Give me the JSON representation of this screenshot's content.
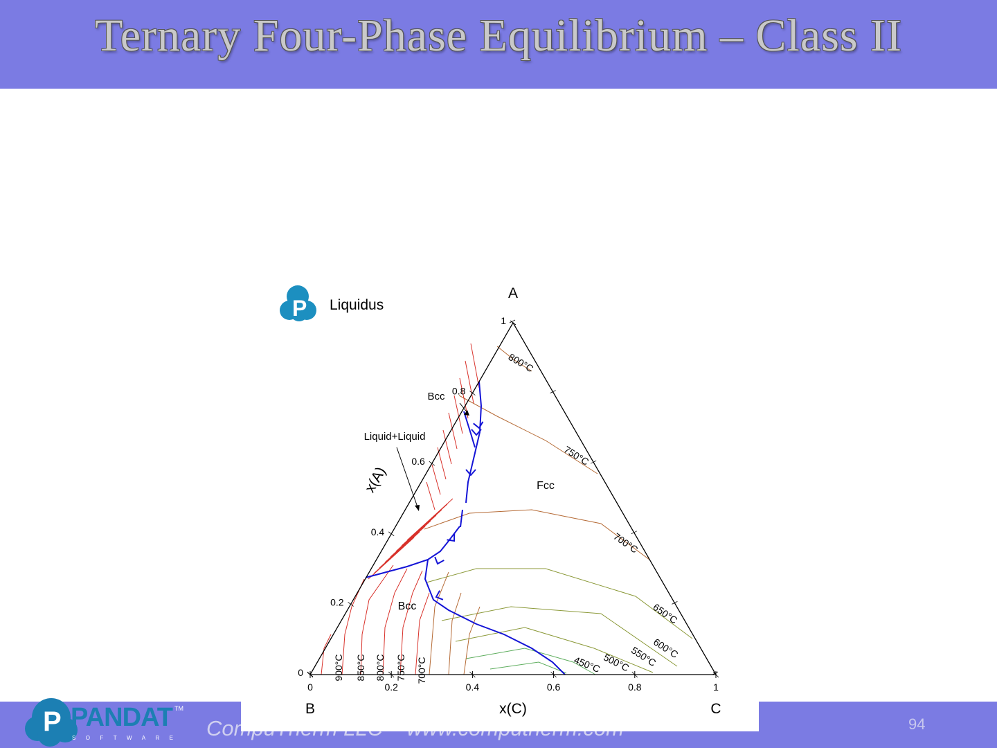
{
  "slide": {
    "title": "Ternary Four-Phase Equilibrium – Class II",
    "footer": "CompuTherm LLC – www.computherm.com",
    "page_number": "94"
  },
  "logos": {
    "pandat": {
      "text": "PANDAT",
      "tm": "TM",
      "subtitle": "SOFTWARE"
    },
    "chart_badge": {
      "letter": "P"
    }
  },
  "colors": {
    "header_bar": "#7b7be3",
    "footer_bar": "#7b7be3",
    "isotherm_red": "#d8312a",
    "isotherm_brown": "#b56a35",
    "isotherm_olive": "#8c9a3a",
    "isotherm_green": "#5fae5f",
    "boundary_line": "#1414d6"
  },
  "chart_data": {
    "type": "ternary",
    "title": "Liquidus",
    "vertices": {
      "top": "A",
      "left": "B",
      "right": "C"
    },
    "xlabel": "x(C)",
    "ylabel": "x(A)",
    "x_ticks": [
      "0",
      "0.2",
      "0.4",
      "0.6",
      "0.8",
      "1"
    ],
    "y_ticks": [
      "0",
      "0.2",
      "0.4",
      "0.6",
      "0.8",
      "1"
    ],
    "phase_labels": [
      "Bcc",
      "Fcc",
      "Bcc"
    ],
    "annotations": [
      "Bcc",
      "Liquid+Liquid"
    ],
    "isotherm_labels": [
      "800°C",
      "750°C",
      "700°C",
      "650°C",
      "600°C",
      "550°C",
      "500°C",
      "450°C",
      "900°C",
      "850°C",
      "800°C",
      "750°C",
      "700°C"
    ]
  }
}
